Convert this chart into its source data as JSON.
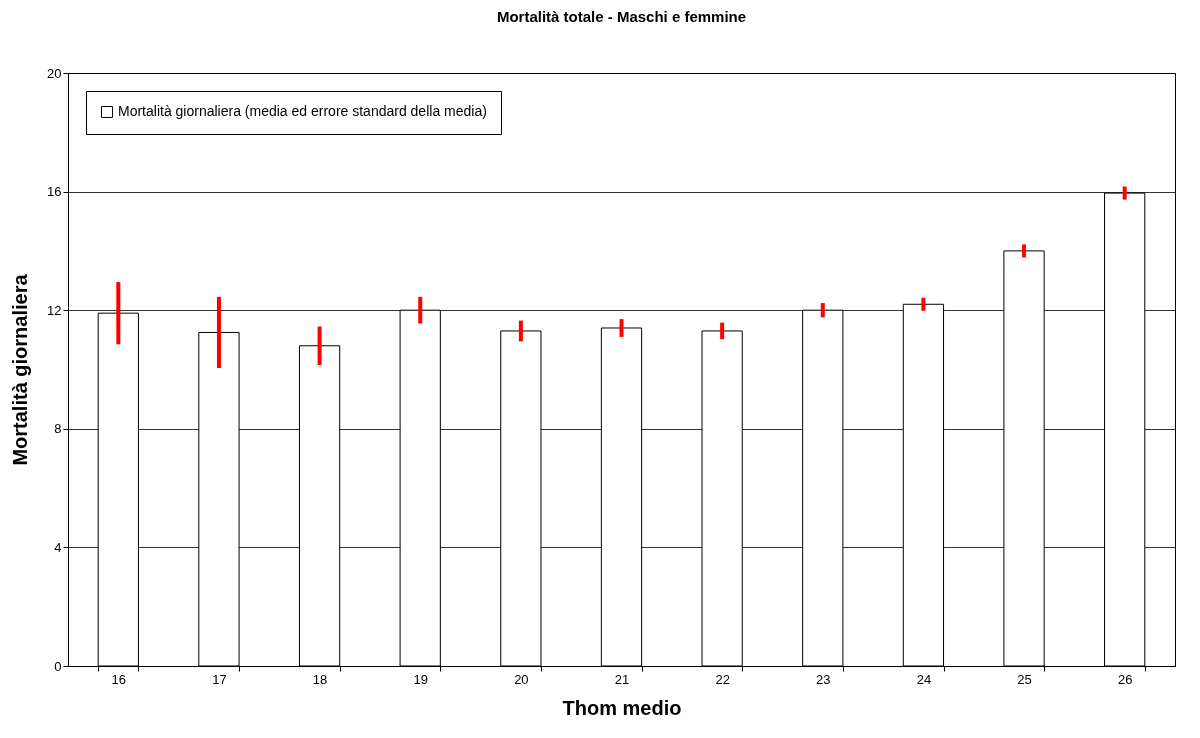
{
  "chart_data": {
    "type": "bar",
    "title": "Mortalità totale - Maschi e femmine",
    "xlabel": "Thom medio",
    "ylabel": "Mortalità giornaliera",
    "categories": [
      "16",
      "17",
      "18",
      "19",
      "20",
      "21",
      "22",
      "23",
      "24",
      "25",
      "26"
    ],
    "series": [
      {
        "name": "Mortalità giornaliera (media ed errore standard della media)",
        "color": "#ffffff",
        "values": [
          11.9,
          11.25,
          10.8,
          12.0,
          11.3,
          11.4,
          11.3,
          12.0,
          12.2,
          14.0,
          15.95
        ],
        "errors": [
          1.05,
          1.2,
          0.65,
          0.45,
          0.35,
          0.3,
          0.28,
          0.24,
          0.22,
          0.22,
          0.22
        ]
      }
    ],
    "ylim": [
      0,
      20
    ],
    "yticks": [
      0,
      4,
      8,
      12,
      16,
      20
    ],
    "grid": "y",
    "legend": "top left"
  }
}
